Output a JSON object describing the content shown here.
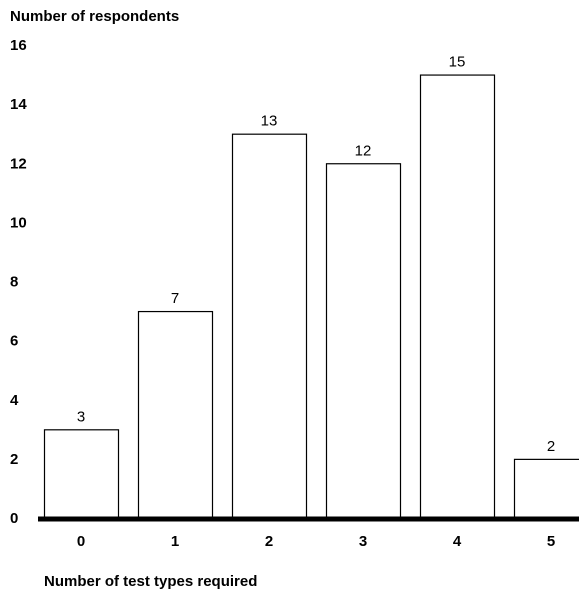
{
  "chart_data": {
    "type": "bar",
    "title": "",
    "ylabel": "Number of respondents",
    "xlabel": "Number of test types required",
    "categories": [
      "0",
      "1",
      "2",
      "3",
      "4",
      "5"
    ],
    "values": [
      3,
      7,
      13,
      12,
      15,
      2
    ],
    "ylim": [
      0,
      16
    ],
    "yticks": [
      "0",
      "2",
      "4",
      "6",
      "8",
      "10",
      "12",
      "14",
      "16"
    ],
    "grid": false,
    "legend": "none",
    "colors": {
      "bar_fill": "#ffffff",
      "bar_stroke": "#000000",
      "axis": "#000000"
    }
  }
}
